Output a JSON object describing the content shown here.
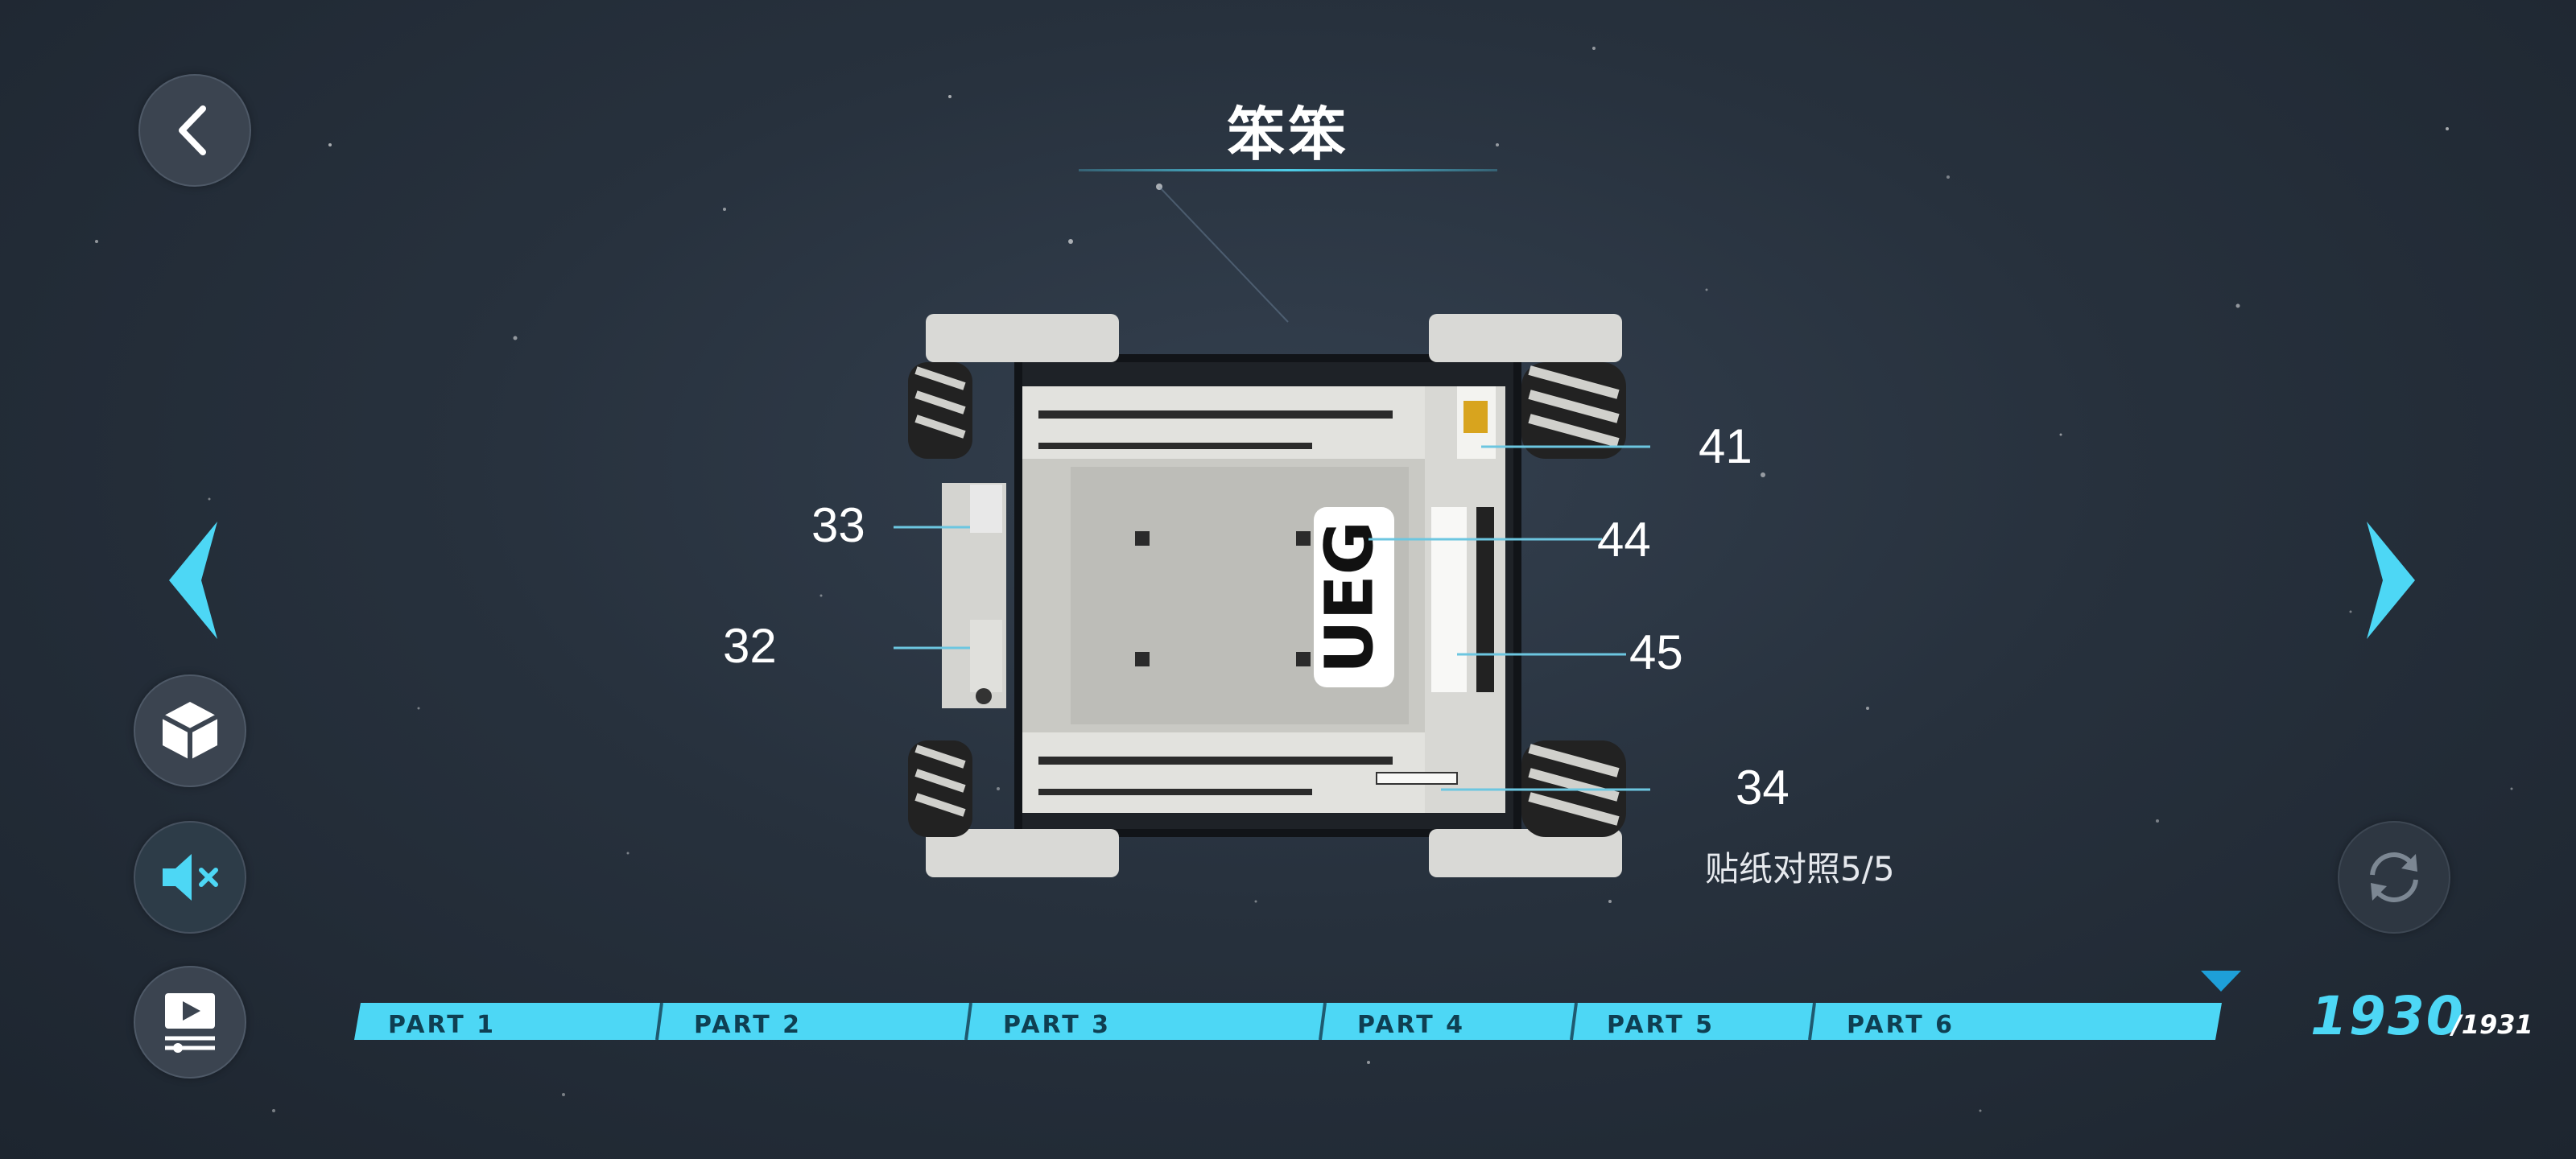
{
  "header": {
    "title": "笨笨"
  },
  "model": {
    "callouts": [
      {
        "label": "41"
      },
      {
        "label": "44"
      },
      {
        "label": "45"
      },
      {
        "label": "34"
      },
      {
        "label": "33"
      },
      {
        "label": "32"
      }
    ],
    "logo_text": "UEG",
    "caption": "贴纸对照5/5"
  },
  "progress": {
    "parts": [
      "PART 1",
      "PART 2",
      "PART 3",
      "PART 4",
      "PART 5",
      "PART 6"
    ],
    "current_step": "1930",
    "total_steps": "/1931"
  },
  "colors": {
    "accent": "#4dd7f5",
    "background": "#27313d",
    "button": "#3b4450"
  },
  "icons": {
    "back": "back-chevron-icon",
    "prev": "prev-arrow-icon",
    "next": "next-arrow-icon",
    "model3d": "cube-icon",
    "sound": "mute-icon",
    "video": "video-player-icon",
    "rotate": "rotate-icon"
  }
}
